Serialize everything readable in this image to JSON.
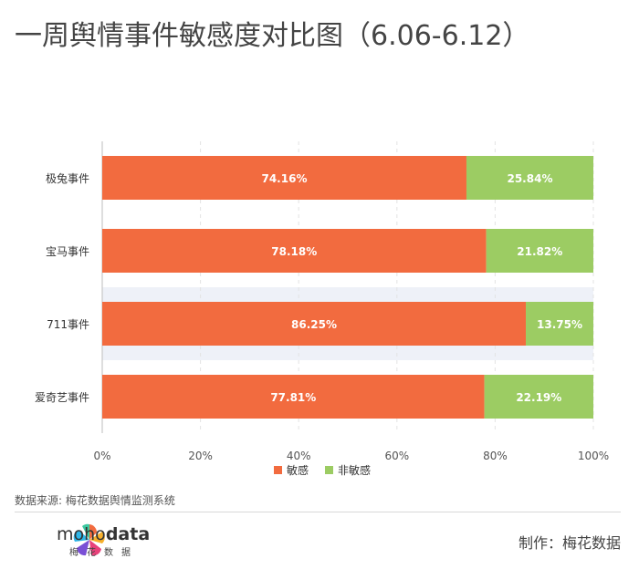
{
  "title": "一周舆情事件敏感度对比图（6.06-6.12）",
  "source": "数据来源: 梅花数据舆情监测系统",
  "logo": {
    "brand_plain": "moho",
    "brand_bold": "data",
    "sub": "梅花数据"
  },
  "credit": "制作：梅花数据",
  "colors": {
    "sensitive": "#F26B3F",
    "non_sensitive": "#9CCC63",
    "row_band": "#EEF1F8"
  },
  "chart_data": {
    "type": "bar",
    "orientation": "horizontal",
    "stacked": true,
    "percent": true,
    "categories": [
      "极兔事件",
      "宝马事件",
      "711事件",
      "爱奇艺事件"
    ],
    "series": [
      {
        "name": "敏感",
        "values": [
          74.16,
          78.18,
          86.25,
          77.81
        ],
        "labels": [
          "74.16%",
          "78.18%",
          "86.25%",
          "77.81%"
        ]
      },
      {
        "name": "非敏感",
        "values": [
          25.84,
          21.82,
          13.75,
          22.19
        ],
        "labels": [
          "25.84%",
          "21.82%",
          "13.75%",
          "22.19%"
        ]
      }
    ],
    "xlim": [
      0,
      100
    ],
    "xticks": [
      "0%",
      "20%",
      "40%",
      "60%",
      "80%",
      "100%"
    ],
    "grid": true,
    "highlighted_category": "711事件",
    "legend": "bottom-center"
  }
}
